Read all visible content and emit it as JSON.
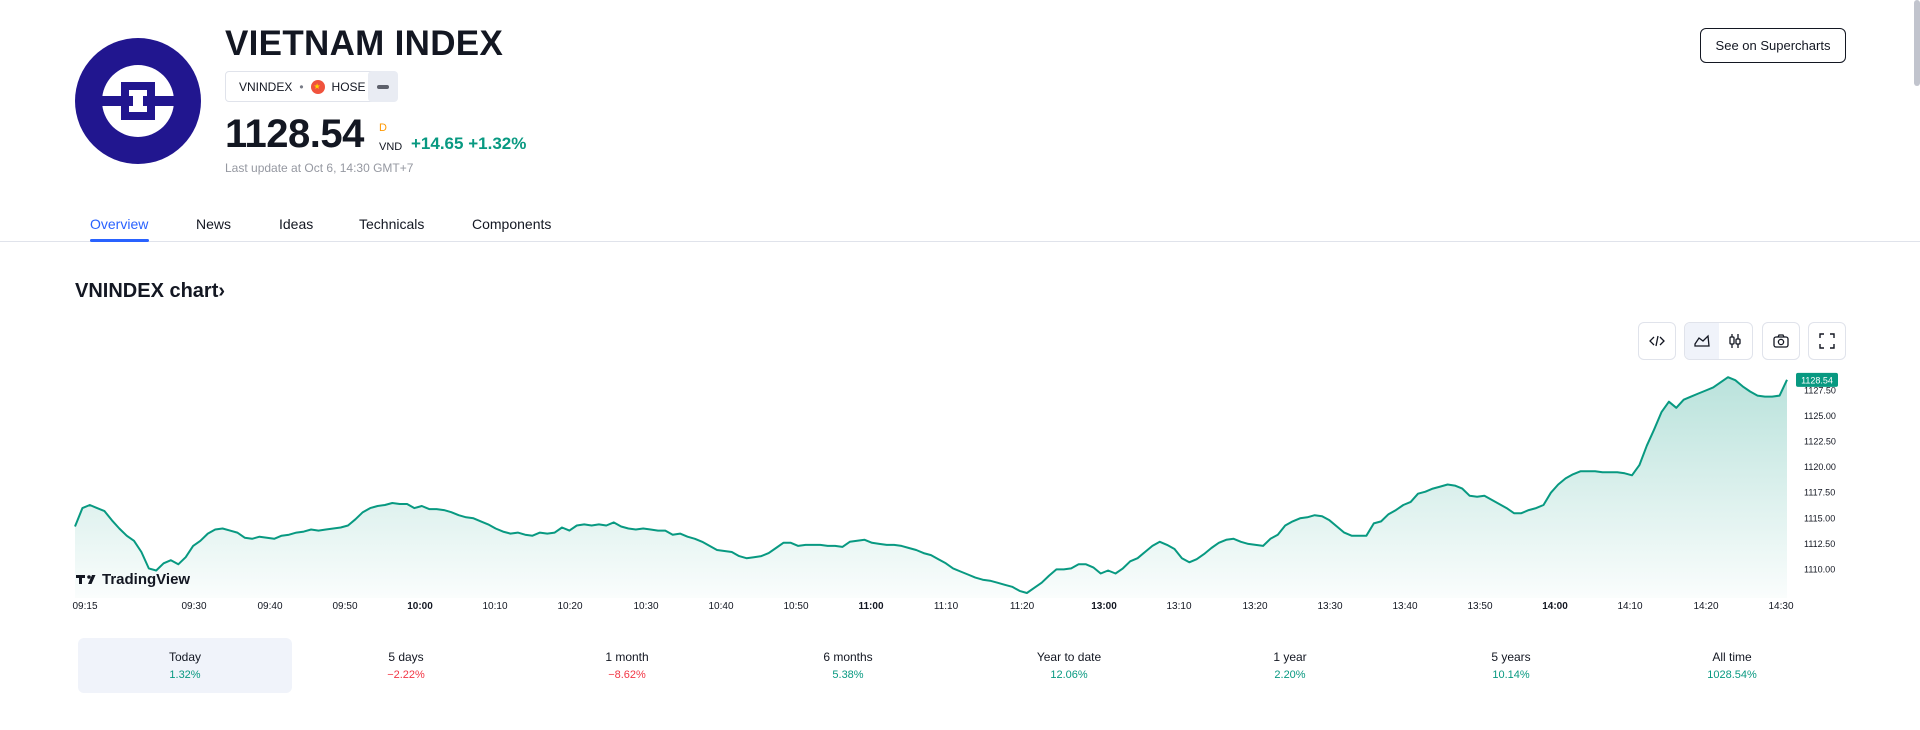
{
  "header": {
    "title": "VIETNAM INDEX",
    "symbol": "VNINDEX",
    "separator": "•",
    "exchange": "HOSE",
    "price": "1128.54",
    "price_flag": "D",
    "currency": "VND",
    "change": "+14.65",
    "change_pct": "+1.32%",
    "last_update": "Last update at Oct 6, 14:30 GMT+7",
    "supercharts_label": "See on Supercharts"
  },
  "tabs": [
    {
      "label": "Overview",
      "active": true
    },
    {
      "label": "News",
      "active": false
    },
    {
      "label": "Ideas",
      "active": false
    },
    {
      "label": "Technicals",
      "active": false
    },
    {
      "label": "Components",
      "active": false
    }
  ],
  "chart_section": {
    "title": "VNINDEX chart",
    "watermark": "TradingView",
    "toolbar_icons": [
      "embed-code-icon",
      "area-chart-icon",
      "candles-icon",
      "camera-icon",
      "fullscreen-icon"
    ]
  },
  "chart_data": {
    "type": "area",
    "line_color": "#089981",
    "last_value_label": "1128.54",
    "y_ticks": [
      1110,
      1112.5,
      1115,
      1117.5,
      1120,
      1122.5,
      1125,
      1127.5
    ],
    "y_tick_labels": [
      "1110.00",
      "1112.50",
      "1115.00",
      "1117.50",
      "1120.00",
      "1122.50",
      "1125.00",
      "1127.50"
    ],
    "ylim": [
      1107.5,
      1129.5
    ],
    "x_ticks": [
      "09:15",
      "09:30",
      "09:40",
      "09:50",
      "10:00",
      "10:10",
      "10:20",
      "10:30",
      "10:40",
      "10:50",
      "11:00",
      "11:10",
      "11:20",
      "13:00",
      "13:10",
      "13:20",
      "13:30",
      "13:40",
      "13:50",
      "14:00",
      "14:10",
      "14:20",
      "14:30"
    ],
    "x_ticks_bold": [
      "10:00",
      "11:00",
      "13:00",
      "14:00"
    ],
    "values": [
      1114.2,
      1116.0,
      1116.3,
      1116.0,
      1115.7,
      1114.8,
      1114.0,
      1113.3,
      1112.8,
      1111.7,
      1110.1,
      1109.9,
      1110.6,
      1110.9,
      1110.5,
      1111.2,
      1112.3,
      1112.8,
      1113.5,
      1113.9,
      1114.0,
      1113.8,
      1113.6,
      1113.1,
      1113.0,
      1113.2,
      1113.1,
      1113.0,
      1113.3,
      1113.4,
      1113.6,
      1113.7,
      1113.9,
      1113.8,
      1113.9,
      1114.0,
      1114.1,
      1114.3,
      1114.9,
      1115.6,
      1116.0,
      1116.2,
      1116.3,
      1116.5,
      1116.4,
      1116.4,
      1116.0,
      1116.2,
      1115.9,
      1115.9,
      1115.8,
      1115.6,
      1115.3,
      1115.1,
      1115.0,
      1114.7,
      1114.4,
      1114.0,
      1113.7,
      1113.5,
      1113.6,
      1113.4,
      1113.3,
      1113.6,
      1113.5,
      1113.6,
      1114.1,
      1113.8,
      1114.3,
      1114.4,
      1114.3,
      1114.4,
      1114.3,
      1114.6,
      1114.2,
      1114.0,
      1113.9,
      1114.0,
      1113.9,
      1113.8,
      1113.8,
      1113.4,
      1113.5,
      1113.2,
      1113.0,
      1112.7,
      1112.3,
      1111.9,
      1111.8,
      1111.7,
      1111.3,
      1111.1,
      1111.2,
      1111.3,
      1111.6,
      1112.1,
      1112.6,
      1112.6,
      1112.3,
      1112.4,
      1112.4,
      1112.4,
      1112.3,
      1112.3,
      1112.2,
      1112.7,
      1112.8,
      1112.9,
      1112.6,
      1112.5,
      1112.4,
      1112.4,
      1112.3,
      1112.1,
      1111.9,
      1111.6,
      1111.4,
      1111.0,
      1110.6,
      1110.1,
      1109.8,
      1109.5,
      1109.2,
      1109.0,
      1108.9,
      1108.7,
      1108.5,
      1108.3,
      1107.9,
      1107.7,
      1108.2,
      1108.7,
      1109.4,
      1110.0,
      1110.0,
      1110.1,
      1110.5,
      1110.5,
      1110.2,
      1109.6,
      1109.9,
      1109.6,
      1110.1,
      1110.8,
      1111.1,
      1111.7,
      1112.3,
      1112.7,
      1112.4,
      1112.0,
      1111.1,
      1110.7,
      1111.0,
      1111.5,
      1112.1,
      1112.6,
      1112.9,
      1113.0,
      1112.7,
      1112.5,
      1112.4,
      1112.3,
      1113.0,
      1113.4,
      1114.3,
      1114.7,
      1115.0,
      1115.1,
      1115.3,
      1115.2,
      1114.8,
      1114.2,
      1113.6,
      1113.3,
      1113.3,
      1113.3,
      1114.5,
      1114.7,
      1115.4,
      1115.8,
      1116.3,
      1116.6,
      1117.4,
      1117.6,
      1117.9,
      1118.1,
      1118.3,
      1118.2,
      1117.9,
      1117.2,
      1117.1,
      1117.2,
      1116.8,
      1116.4,
      1116.0,
      1115.5,
      1115.5,
      1115.8,
      1116.0,
      1116.3,
      1117.5,
      1118.3,
      1118.9,
      1119.3,
      1119.6,
      1119.6,
      1119.6,
      1119.5,
      1119.5,
      1119.5,
      1119.4,
      1119.2,
      1120.2,
      1122.1,
      1123.7,
      1125.4,
      1126.4,
      1125.8,
      1126.6,
      1126.9,
      1127.2,
      1127.5,
      1127.8,
      1128.3,
      1128.8,
      1128.5,
      1127.9,
      1127.4,
      1127.0,
      1126.9,
      1126.9,
      1127.0,
      1128.54
    ]
  },
  "periods": [
    {
      "label": "Today",
      "value": "1.32%",
      "sign": "pos",
      "selected": true
    },
    {
      "label": "5 days",
      "value": "−2.22%",
      "sign": "neg",
      "selected": false
    },
    {
      "label": "1 month",
      "value": "−8.62%",
      "sign": "neg",
      "selected": false
    },
    {
      "label": "6 months",
      "value": "5.38%",
      "sign": "pos",
      "selected": false
    },
    {
      "label": "Year to date",
      "value": "12.06%",
      "sign": "pos",
      "selected": false
    },
    {
      "label": "1 year",
      "value": "2.20%",
      "sign": "pos",
      "selected": false
    },
    {
      "label": "5 years",
      "value": "10.14%",
      "sign": "pos",
      "selected": false
    },
    {
      "label": "All time",
      "value": "1028.54%",
      "sign": "pos",
      "selected": false
    }
  ]
}
